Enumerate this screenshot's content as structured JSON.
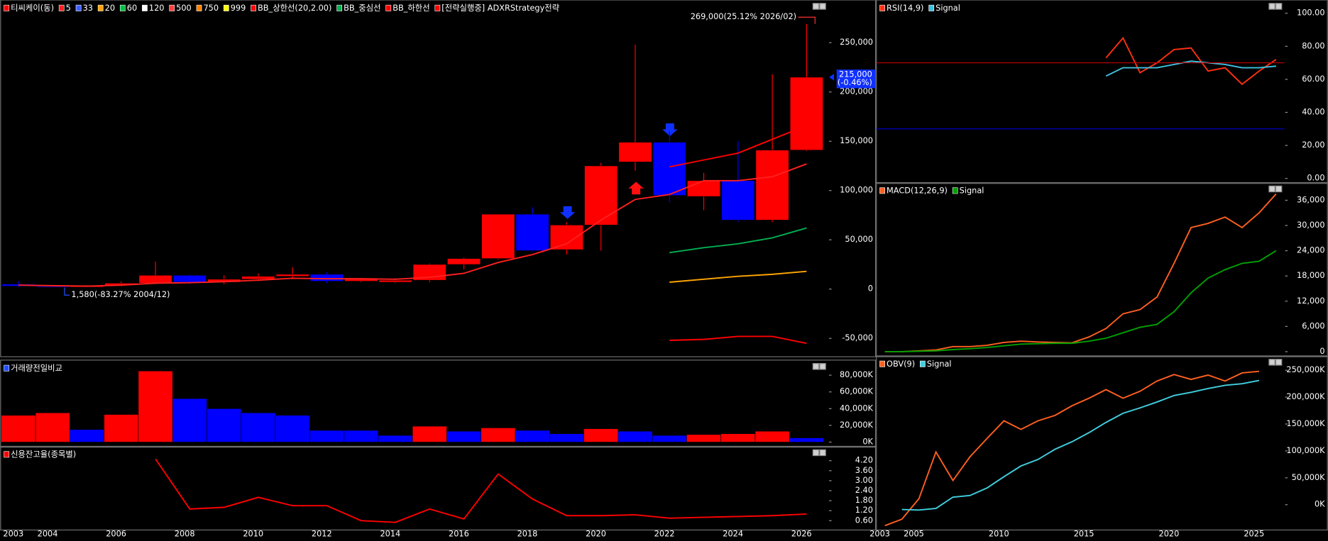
{
  "chart_data": [
    {
      "type": "candlestick",
      "name": "티씨케이(동)",
      "up_color": "#ff0000",
      "down_color": "#0000ff",
      "x": [
        2003,
        2004,
        2005,
        2006,
        2007,
        2008,
        2009,
        2010,
        2011,
        2012,
        2013,
        2014,
        2015,
        2016,
        2017,
        2018,
        2019,
        2020,
        2021,
        2022,
        2023,
        2024,
        2025,
        2026
      ],
      "open": [
        5000,
        3000,
        2000,
        4000,
        6000,
        14000,
        7000,
        10000,
        13000,
        15000,
        8000,
        7000,
        9000,
        25000,
        31000,
        76000,
        40000,
        65000,
        129000,
        149000,
        94000,
        110000,
        70000,
        141000
      ],
      "high": [
        8000,
        4000,
        4000,
        8000,
        28000,
        15000,
        14000,
        16000,
        22000,
        17000,
        11000,
        11000,
        26000,
        32000,
        76000,
        83000,
        68000,
        128000,
        248000,
        160000,
        118000,
        150000,
        218000,
        269000
      ],
      "low": [
        2000,
        1580,
        1800,
        3000,
        5000,
        5000,
        5000,
        8000,
        10000,
        6000,
        7000,
        6000,
        7000,
        20000,
        30000,
        38000,
        35000,
        39000,
        120000,
        88000,
        80000,
        68000,
        68000,
        140000
      ],
      "close": [
        3000,
        2000,
        4000,
        6000,
        14000,
        7000,
        10000,
        13000,
        15000,
        8000,
        10000,
        9000,
        25000,
        31000,
        76000,
        39000,
        65000,
        125000,
        149000,
        95000,
        110000,
        70000,
        141000,
        215000
      ],
      "series": [
        {
          "name": "5",
          "color": "#ff2020",
          "values": [
            4000,
            3500,
            3000,
            4000,
            6000,
            6500,
            7500,
            9000,
            11000,
            10500,
            10500,
            10000,
            12000,
            16000,
            27000,
            35000,
            46000,
            70000,
            91000,
            96000,
            110000,
            110000,
            114000,
            127000
          ]
        },
        {
          "name": "33",
          "color": "#4060ff"
        },
        {
          "name": "20",
          "color": "#ffa500",
          "values": [
            null,
            null,
            null,
            null,
            null,
            null,
            null,
            null,
            null,
            null,
            null,
            null,
            null,
            null,
            null,
            null,
            null,
            null,
            null,
            7000,
            10000,
            13000,
            15000,
            18000
          ]
        },
        {
          "name": "60",
          "color": "#00c040"
        },
        {
          "name": "120",
          "color": "#ffffff"
        },
        {
          "name": "500",
          "color": "#ff4040"
        },
        {
          "name": "750",
          "color": "#ff8000"
        },
        {
          "name": "999",
          "color": "#ffff00"
        },
        {
          "name": "BB_상한선(20,2.00)",
          "color": "#ff0000",
          "values": [
            null,
            null,
            null,
            null,
            null,
            null,
            null,
            null,
            null,
            null,
            null,
            null,
            null,
            null,
            null,
            null,
            null,
            null,
            null,
            124000,
            131000,
            138000,
            152000,
            166000
          ]
        },
        {
          "name": "BB_중심선",
          "color": "#00b050",
          "values": [
            null,
            null,
            null,
            null,
            null,
            null,
            null,
            null,
            null,
            null,
            null,
            null,
            null,
            null,
            null,
            null,
            null,
            null,
            null,
            37000,
            42000,
            46000,
            52000,
            62000
          ]
        },
        {
          "name": "BB_하한선",
          "color": "#ff0000",
          "values": [
            null,
            null,
            null,
            null,
            null,
            null,
            null,
            null,
            null,
            null,
            null,
            null,
            null,
            null,
            null,
            null,
            null,
            null,
            null,
            -52000,
            -51000,
            -48000,
            -48000,
            -55000
          ]
        },
        {
          "name": "[전략실행중] ADXRStrategy전략",
          "color": "#ff0000"
        }
      ],
      "annotations": [
        {
          "text": "269,000(25.12% 2026/02)",
          "x": 2026,
          "y": 269000,
          "color": "#ff3030"
        },
        {
          "text": "1,580(-83.27% 2004/12)",
          "x": 2004,
          "y": 1580,
          "color": "#2050ff"
        }
      ],
      "last_label": {
        "text": "215,000",
        "change": "(-0.46%)",
        "value": 215000,
        "color": "#1030ff"
      },
      "xlim": [
        2002.48,
        2026.63
      ],
      "ylim": [
        -66900,
        291600
      ],
      "yticks": [
        {
          "value": 250000,
          "label": "250,000"
        },
        {
          "value": 200000,
          "label": "200,000"
        },
        {
          "value": 150000,
          "label": "150,000"
        },
        {
          "value": 100000,
          "label": "100,000"
        },
        {
          "value": 50000,
          "label": "50,000"
        },
        0,
        {
          "value": -50000,
          "label": "-50,000"
        }
      ]
    },
    {
      "type": "bar",
      "name": "거래량전일비교",
      "name_color": "#2050ff",
      "x": [
        2003,
        2004,
        2005,
        2006,
        2007,
        2008,
        2009,
        2010,
        2011,
        2012,
        2013,
        2014,
        2015,
        2016,
        2017,
        2018,
        2019,
        2020,
        2021,
        2022,
        2023,
        2024,
        2025,
        2026
      ],
      "values": [
        32000,
        35000,
        15000,
        33000,
        85000,
        52000,
        40000,
        35000,
        32000,
        14000,
        14000,
        8000,
        19000,
        13000,
        17000,
        14000,
        10000,
        16000,
        13000,
        8000,
        9000,
        10000,
        13000,
        5000
      ],
      "colors": [
        "#ff0000",
        "#ff0000",
        "#0000ff",
        "#ff0000",
        "#ff0000",
        "#0000ff",
        "#0000ff",
        "#0000ff",
        "#0000ff",
        "#0000ff",
        "#0000ff",
        "#0000ff",
        "#ff0000",
        "#0000ff",
        "#ff0000",
        "#0000ff",
        "#0000ff",
        "#ff0000",
        "#0000ff",
        "#0000ff",
        "#ff0000",
        "#ff0000",
        "#ff0000",
        "#0000ff"
      ],
      "xlim": [
        2002.48,
        2026.63
      ],
      "ylim": [
        -4050,
        96000
      ],
      "yticks": [
        {
          "value": 80000,
          "label": "80,000K"
        },
        {
          "value": 60000,
          "label": "60,000K"
        },
        {
          "value": 40000,
          "label": "40,000K"
        },
        {
          "value": 20000,
          "label": "20,000K"
        },
        {
          "value": 0,
          "label": "0K"
        }
      ]
    },
    {
      "type": "line",
      "x": [
        2007,
        2008,
        2009,
        2010,
        2011,
        2012,
        2013,
        2014,
        2015,
        2016,
        2017,
        2018,
        2019,
        2020,
        2021,
        2022,
        2023,
        2024,
        2025,
        2026
      ],
      "series": [
        {
          "name": "신용잔고율(종목별)",
          "color": "#ff0000",
          "values": [
            4.3,
            1.3,
            1.4,
            2.0,
            1.5,
            1.5,
            0.6,
            0.5,
            1.3,
            0.7,
            3.4,
            1.9,
            0.9,
            0.9,
            0.95,
            0.75,
            0.8,
            0.85,
            0.9,
            1.0
          ]
        }
      ],
      "xlim": [
        2002.48,
        2026.63
      ],
      "ylim": [
        0.14,
        4.96
      ],
      "yticks": [
        {
          "value": 4.2,
          "label": "4.20"
        },
        {
          "value": 3.6,
          "label": "3.60"
        },
        {
          "value": 3.0,
          "label": "3.00"
        },
        {
          "value": 2.4,
          "label": "2.40"
        },
        {
          "value": 1.8,
          "label": "1.80"
        },
        {
          "value": 1.2,
          "label": "1.20"
        },
        {
          "value": 0.6,
          "label": "0.60"
        }
      ],
      "xticks": [
        2003,
        2004,
        2006,
        2008,
        2010,
        2012,
        2014,
        2016,
        2018,
        2020,
        2022,
        2024,
        2026
      ]
    },
    {
      "type": "line",
      "x": [
        2016,
        2017,
        2018,
        2019,
        2020,
        2021,
        2022,
        2023,
        2024,
        2025,
        2026
      ],
      "series": [
        {
          "name": "RSI(14,9)",
          "color": "#ff3010",
          "values": [
            73,
            85,
            64,
            70,
            78,
            79,
            65,
            67,
            57,
            65,
            72
          ]
        },
        {
          "name": "Signal",
          "color": "#40c0e0",
          "values": [
            62,
            67,
            67,
            67,
            69,
            71,
            70,
            69,
            67,
            67,
            68
          ]
        }
      ],
      "ref_lines": [
        {
          "value": 70,
          "color": "#c00000"
        },
        {
          "value": 30,
          "color": "#0000c0"
        }
      ],
      "xlim": [
        2002.5,
        2026.48
      ],
      "ylim": [
        -2,
        107
      ],
      "yticks": [
        {
          "value": 100,
          "label": "100.00"
        },
        {
          "value": 80,
          "label": "80.00"
        },
        {
          "value": 60,
          "label": "60.00"
        },
        {
          "value": 40,
          "label": "40.00"
        },
        {
          "value": 20,
          "label": "20.00"
        },
        {
          "value": 0,
          "label": "0.00"
        }
      ]
    },
    {
      "type": "line",
      "x": [
        2003,
        2004,
        2005,
        2006,
        2007,
        2008,
        2009,
        2010,
        2011,
        2012,
        2013,
        2014,
        2015,
        2016,
        2017,
        2018,
        2019,
        2020,
        2021,
        2022,
        2023,
        2024,
        2025,
        2026
      ],
      "series": [
        {
          "name": "MACD(12,26,9)",
          "color": "#ff6020",
          "values": [
            0,
            0,
            200,
            400,
            1200,
            1200,
            1500,
            2200,
            2500,
            2300,
            2200,
            2100,
            3500,
            5500,
            9000,
            10000,
            13000,
            21000,
            29500,
            30500,
            32000,
            29500,
            33000,
            37500
          ]
        },
        {
          "name": "Signal",
          "color": "#00a000",
          "values": [
            0,
            0,
            100,
            200,
            500,
            700,
            1000,
            1400,
            1800,
            1900,
            2000,
            2000,
            2500,
            3200,
            4500,
            5800,
            6500,
            9500,
            14000,
            17500,
            19500,
            21000,
            21500,
            24000
          ]
        }
      ],
      "xlim": [
        2002.5,
        2026.48
      ],
      "ylim": [
        -800,
        39800
      ],
      "yticks": [
        {
          "value": 36000,
          "label": "36,000"
        },
        {
          "value": 30000,
          "label": "30,000"
        },
        {
          "value": 24000,
          "label": "24,000"
        },
        {
          "value": 18000,
          "label": "18,000"
        },
        {
          "value": 12000,
          "label": "12,000"
        },
        {
          "value": 6000,
          "label": "6,000"
        },
        0
      ]
    },
    {
      "type": "line",
      "x": [
        2003,
        2004,
        2005,
        2006,
        2007,
        2008,
        2009,
        2010,
        2011,
        2012,
        2013,
        2014,
        2015,
        2016,
        2017,
        2018,
        2019,
        2020,
        2021,
        2022,
        2023,
        2024,
        2025
      ],
      "series": [
        {
          "name": "OBV(9)",
          "color": "#ff6020",
          "values": [
            -39000,
            -27000,
            11000,
            98000,
            45000,
            89000,
            123000,
            156000,
            140000,
            156000,
            166000,
            184000,
            198000,
            214000,
            198000,
            211000,
            230000,
            242000,
            233000,
            241000,
            230000,
            245000,
            248000
          ]
        },
        {
          "name": "Signal",
          "color": "#40d0e0",
          "values": [
            null,
            -9000,
            -10000,
            -7000,
            14000,
            17000,
            31000,
            52000,
            72000,
            84000,
            103000,
            117000,
            134000,
            153000,
            170000,
            180000,
            191000,
            203000,
            209000,
            216000,
            222000,
            225000,
            231000
          ]
        }
      ],
      "xlim": [
        2002.5,
        2026.48
      ],
      "ylim": [
        -44000,
        273600
      ],
      "yticks": [
        {
          "value": 250000,
          "label": "250,000K"
        },
        {
          "value": 200000,
          "label": "200,000K"
        },
        {
          "value": 150000,
          "label": "150,000K"
        },
        {
          "value": 100000,
          "label": "100,000K"
        },
        {
          "value": 50000,
          "label": "50,000K"
        },
        {
          "value": 0,
          "label": "0K"
        }
      ],
      "xticks": [
        2003,
        2005,
        2010,
        2015,
        2020,
        2025
      ]
    }
  ]
}
